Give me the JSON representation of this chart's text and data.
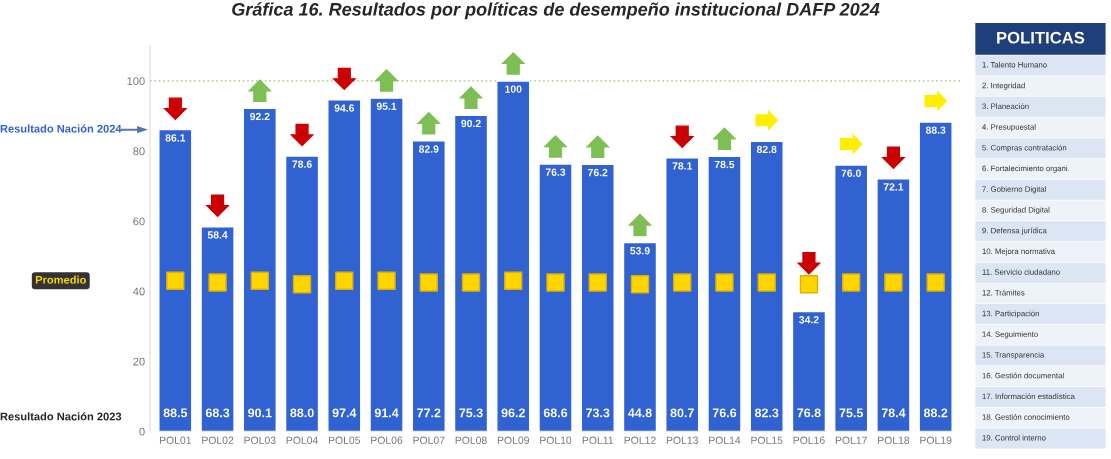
{
  "chart_data": [
    {
      "type": "bar",
      "title": "Gráfica 16. Resultados por políticas de desempeño institucional DAFP 2024",
      "categories": [
        "POL01",
        "POL02",
        "POL03",
        "POL04",
        "POL05",
        "POL06",
        "POL07",
        "POL08",
        "POL09",
        "POL10",
        "POL11",
        "POL12",
        "POL13",
        "POL14",
        "POL15",
        "POL16",
        "POL17",
        "POL18",
        "POL19"
      ],
      "series": [
        {
          "name": "Resultado Nación 2024",
          "type": "bar",
          "color": "#3162d1",
          "values": [
            86.1,
            58.4,
            92.2,
            78.6,
            94.6,
            95.1,
            82.9,
            90.2,
            100,
            76.3,
            76.2,
            53.9,
            78.1,
            78.5,
            82.8,
            34.2,
            76.0,
            72.1,
            88.3
          ],
          "value_labels": [
            "86.1",
            "58.4",
            "92.2",
            "78.6",
            "94.6",
            "95.1",
            "82.9",
            "90.2",
            "100",
            "76.3",
            "76.2",
            "53.9",
            "78.1",
            "78.5",
            "82.8",
            "34.2",
            "76.0",
            "72.1",
            "88.3"
          ]
        },
        {
          "name": "Promedio",
          "type": "scatter",
          "marker": "square",
          "color": "#ffd500",
          "values": [
            43,
            42.5,
            43,
            42,
            43,
            43,
            42.5,
            42.5,
            43,
            42.5,
            42.5,
            42,
            42.5,
            42.5,
            42.5,
            42,
            42.5,
            42.5,
            42.5
          ]
        }
      ],
      "ylim": [
        0,
        110
      ],
      "yticks": [
        0,
        20,
        40,
        60,
        80,
        100
      ],
      "ref_lines": [
        {
          "axis": "y",
          "value": 100,
          "color": "#b5d9a0",
          "line_style": "dotted"
        }
      ],
      "grid": false,
      "legend": false,
      "annotations": [
        "Resultado Nación 2023",
        "88.5",
        "68.3",
        "90.1",
        "88.0",
        "97.4",
        "91.4",
        "77.2",
        "75.3",
        "96.2",
        "68.6",
        "73.3",
        "44.8",
        "80.7",
        "76.6",
        "82.3",
        "76.8",
        "75.5",
        "78.4",
        "88.2"
      ]
    },
    {
      "type": "other",
      "title": "POLITICAS",
      "annotations": [
        "1. Talento Humano",
        "2. Integridad",
        "3. Planeación",
        "4. Presupuestal",
        "5. Compras contratación",
        "6. Fortalecimiento organi.",
        "7. Gobierno Digital",
        "8. Seguridad Digital",
        "9. Defensa jurídica",
        "10. Mejora normativa",
        "11. Servicio ciudadano",
        "12. Trámites",
        "13. Participación",
        "14. Seguimiento",
        "15. Transparencia",
        "16. Gestión documental",
        "17. Información estadística",
        "18. Gestión conocimiento",
        "19. Control interno"
      ]
    }
  ]
}
